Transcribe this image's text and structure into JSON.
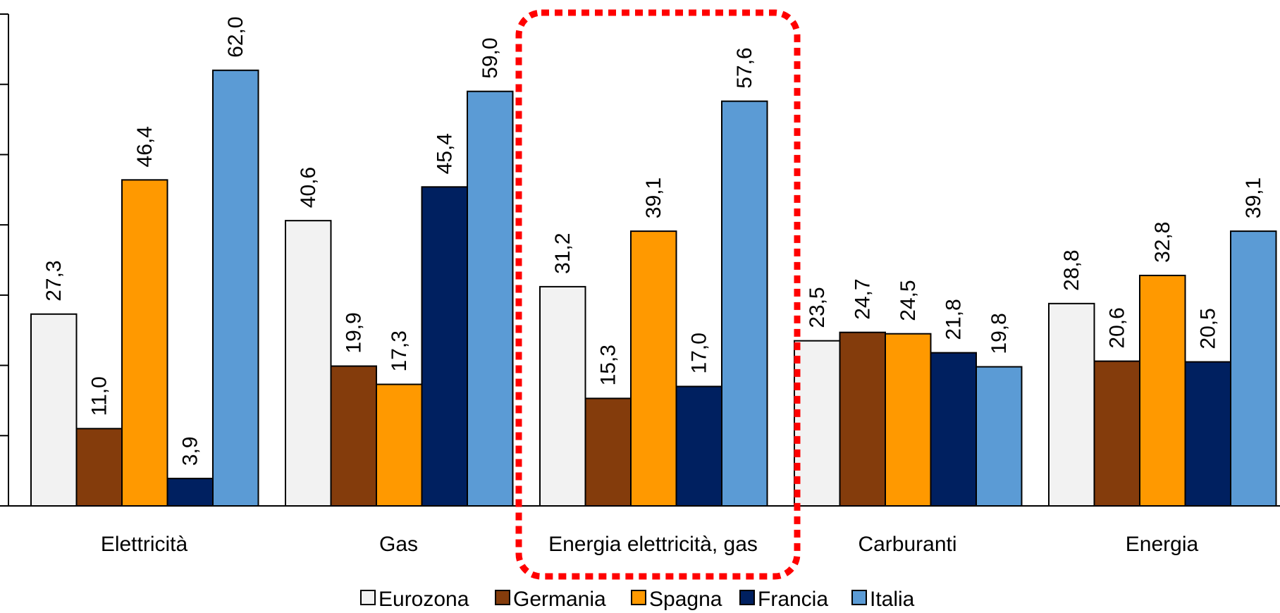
{
  "chart_data": {
    "type": "bar",
    "categories": [
      "Elettricità",
      "Gas",
      "Energia elettricità, gas",
      "Carburanti",
      "Energia"
    ],
    "series": [
      {
        "name": "Eurozona",
        "color": "#f2f2f2",
        "values": [
          27.3,
          40.6,
          31.2,
          23.5,
          28.8
        ],
        "labels": [
          "27,3",
          "40,6",
          "31,2",
          "23,5",
          "28,8"
        ]
      },
      {
        "name": "Germania",
        "color": "#843c0c",
        "values": [
          11.0,
          19.9,
          15.3,
          24.7,
          20.6
        ],
        "labels": [
          "11,0",
          "19,9",
          "15,3",
          "24,7",
          "20,6"
        ]
      },
      {
        "name": "Spagna",
        "color": "#ff9900",
        "values": [
          46.4,
          17.3,
          39.1,
          24.5,
          32.8
        ],
        "labels": [
          "46,4",
          "17,3",
          "39,1",
          "24,5",
          "32,8"
        ]
      },
      {
        "name": "Francia",
        "color": "#002060",
        "values": [
          3.9,
          45.4,
          17.0,
          21.8,
          20.5
        ],
        "labels": [
          "3,9",
          "45,4",
          "17,0",
          "21,8",
          "20,5"
        ]
      },
      {
        "name": "Italia",
        "color": "#5b9bd5",
        "values": [
          62.0,
          59.0,
          57.6,
          19.8,
          39.1
        ],
        "labels": [
          "62,0",
          "59,0",
          "57,6",
          "19,8",
          "39,1"
        ]
      }
    ],
    "ylim": [
      0,
      70
    ],
    "y_gridlines": false,
    "legend_position": "bottom",
    "highlight": {
      "category_index": 2,
      "style": "red dotted rounded rectangle",
      "color": "#ff0000"
    }
  }
}
